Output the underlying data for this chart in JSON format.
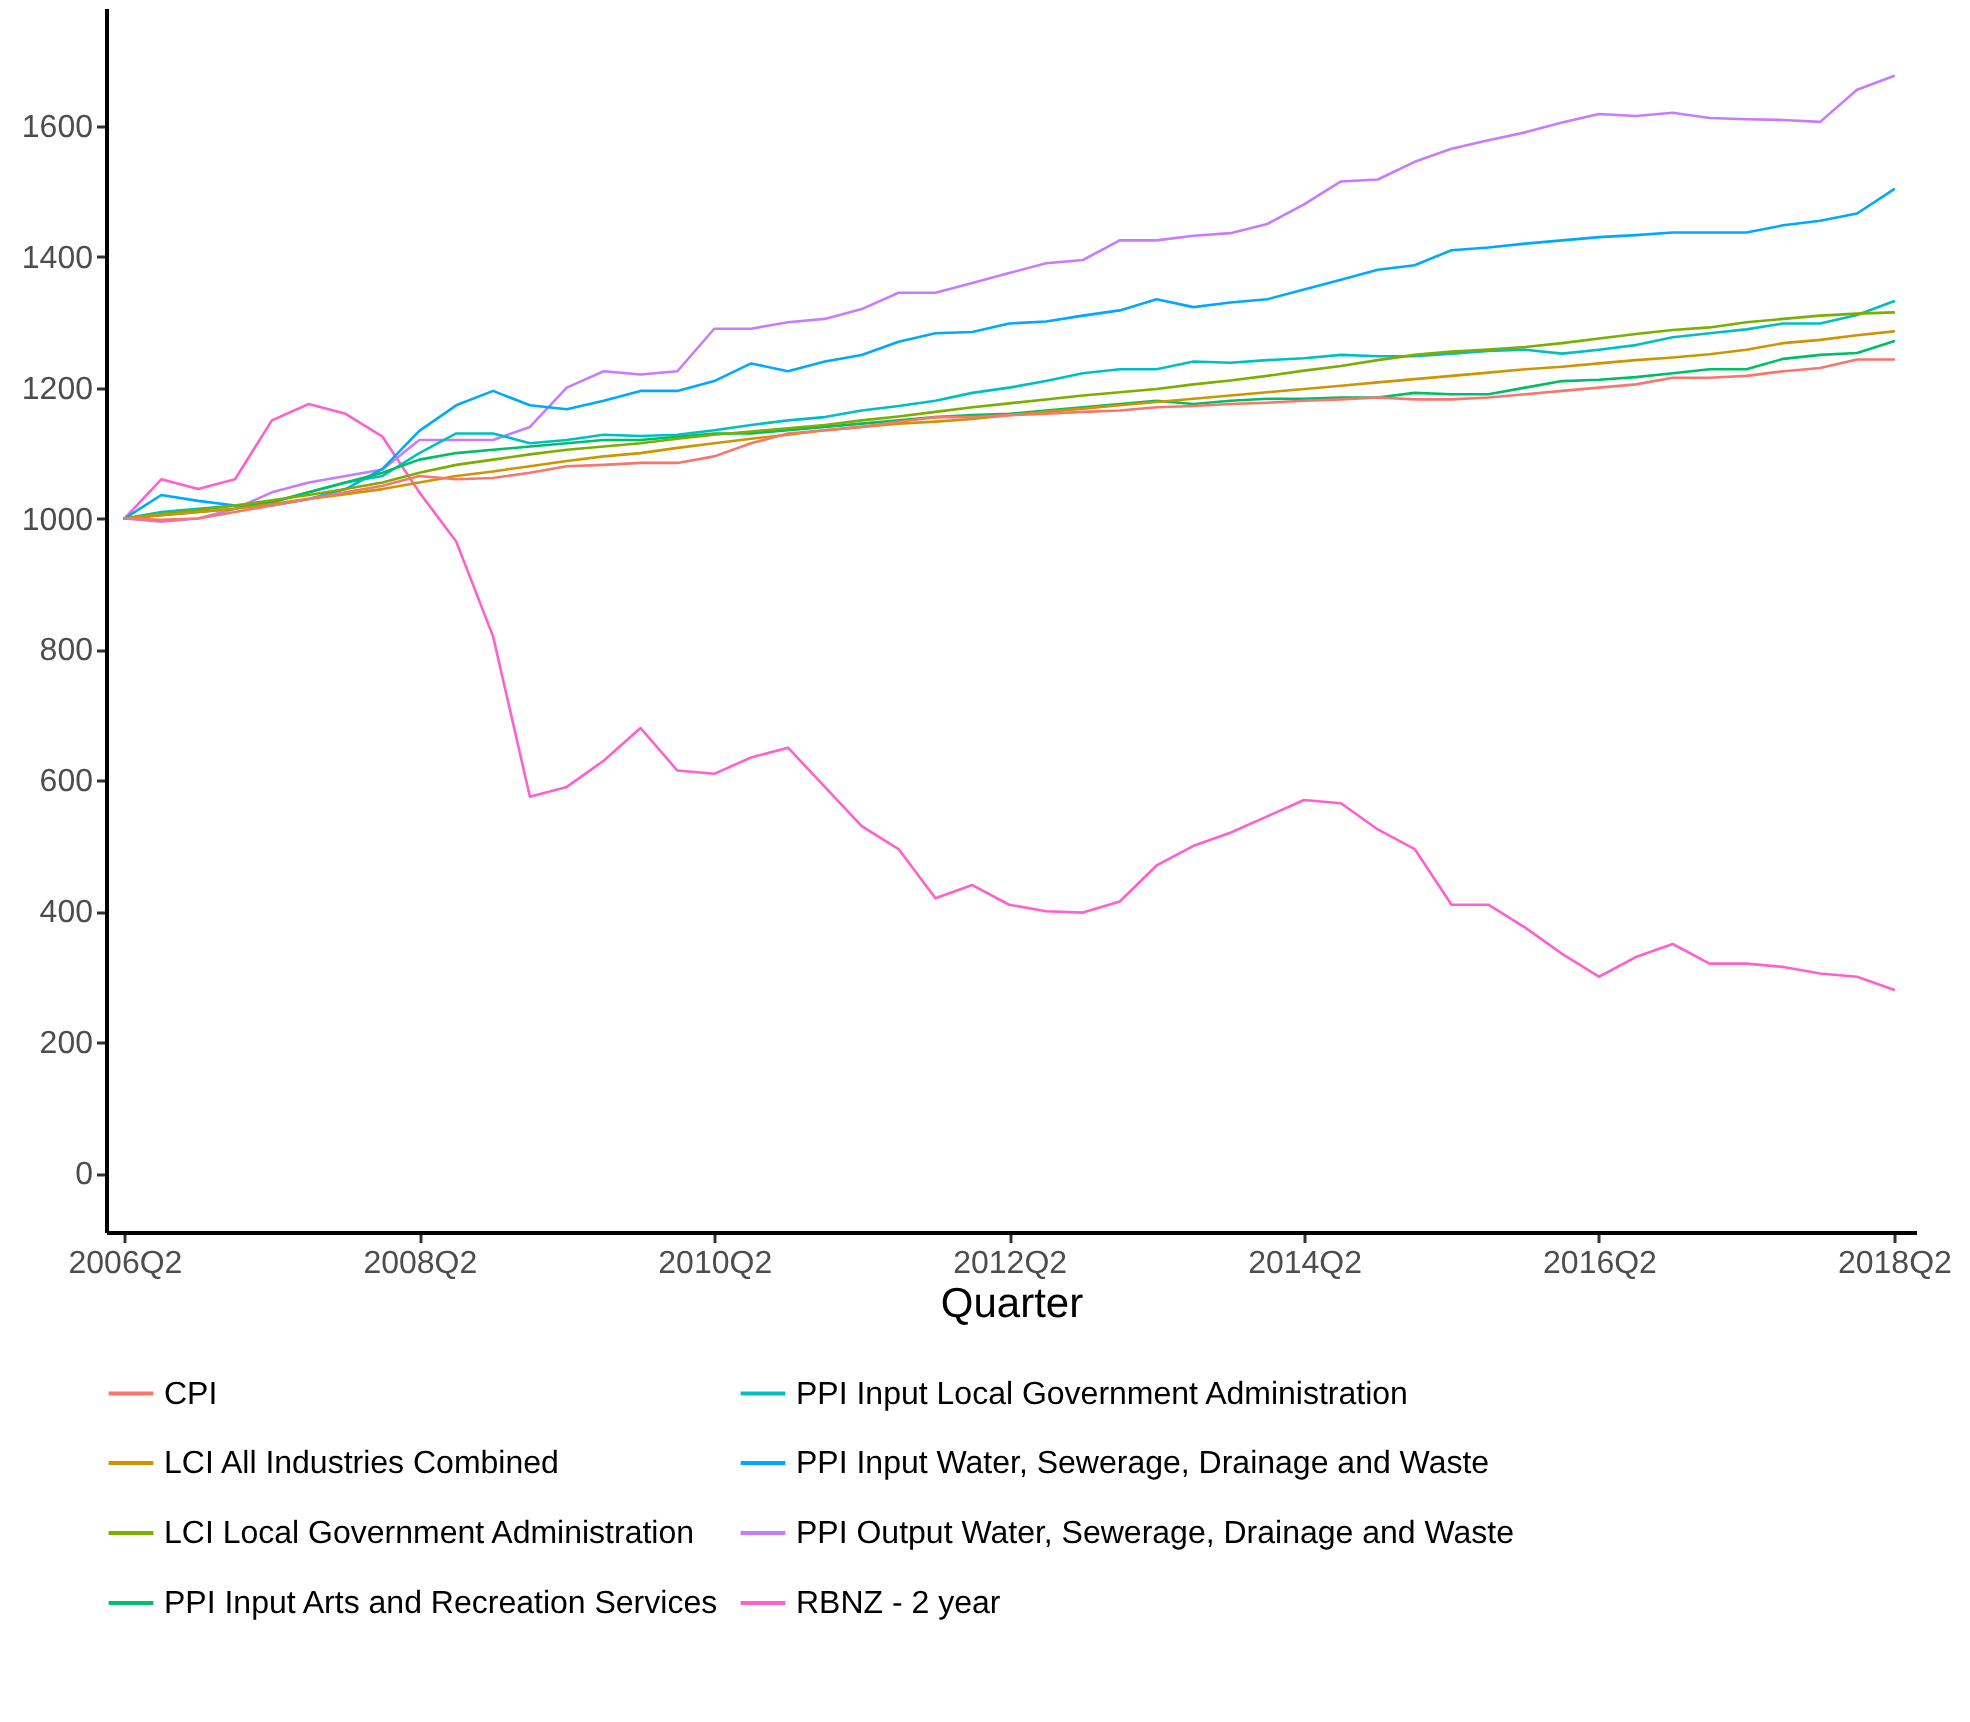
{
  "chart_data": {
    "type": "line",
    "xlabel": "Quarter",
    "categories": [
      "2006Q2",
      null,
      null,
      null,
      null,
      null,
      null,
      null,
      "2008Q2",
      null,
      null,
      null,
      null,
      null,
      null,
      null,
      "2010Q2",
      null,
      null,
      null,
      null,
      null,
      null,
      null,
      "2012Q2",
      null,
      null,
      null,
      null,
      null,
      null,
      null,
      "2014Q2",
      null,
      null,
      null,
      null,
      null,
      null,
      null,
      "2016Q2",
      null,
      null,
      null,
      null,
      null,
      null,
      null,
      "2018Q2"
    ],
    "ylim": [
      -90,
      1780
    ],
    "yticks": [
      0,
      200,
      400,
      600,
      800,
      1000,
      1200,
      1400,
      1600
    ],
    "grid": false,
    "legend": "bottom",
    "line_style": "solid",
    "series": [
      {
        "name": "CPI",
        "color": "#f8766d",
        "values": [
          1000,
          998,
          1000,
          1010,
          1020,
          1030,
          1040,
          1050,
          1065,
          1060,
          1062,
          1070,
          1080,
          1082,
          1085,
          1085,
          1095,
          1115,
          1130,
          1135,
          1140,
          1148,
          1155,
          1155,
          1158,
          1160,
          1163,
          1165,
          1170,
          1172,
          1175,
          1177,
          1180,
          1182,
          1185,
          1182,
          1182,
          1185,
          1190,
          1195,
          1200,
          1205,
          1215,
          1215,
          1218,
          1225,
          1230,
          1243,
          1243
        ]
      },
      {
        "name": "LCI All Industries Combined",
        "color": "#cd9600",
        "values": [
          1000,
          1005,
          1010,
          1015,
          1022,
          1030,
          1037,
          1045,
          1055,
          1065,
          1072,
          1080,
          1088,
          1095,
          1100,
          1108,
          1115,
          1122,
          1128,
          1135,
          1140,
          1145,
          1148,
          1152,
          1158,
          1163,
          1168,
          1173,
          1178,
          1183,
          1188,
          1193,
          1198,
          1203,
          1208,
          1213,
          1218,
          1223,
          1228,
          1232,
          1237,
          1242,
          1246,
          1251,
          1258,
          1268,
          1273,
          1280,
          1286
        ]
      },
      {
        "name": "LCI Local Government Administration",
        "color": "#7cae00",
        "values": [
          1000,
          1007,
          1013,
          1020,
          1028,
          1036,
          1045,
          1055,
          1070,
          1082,
          1090,
          1098,
          1105,
          1110,
          1115,
          1122,
          1128,
          1133,
          1138,
          1143,
          1150,
          1156,
          1163,
          1170,
          1176,
          1182,
          1188,
          1193,
          1198,
          1205,
          1211,
          1218,
          1226,
          1233,
          1242,
          1250,
          1255,
          1258,
          1262,
          1268,
          1275,
          1282,
          1288,
          1292,
          1300,
          1305,
          1310,
          1313,
          1315
        ]
      },
      {
        "name": "PPI Input Arts and Recreation Services",
        "color": "#00be67",
        "values": [
          1000,
          1005,
          1010,
          1015,
          1025,
          1040,
          1055,
          1070,
          1090,
          1100,
          1105,
          1110,
          1115,
          1120,
          1120,
          1125,
          1130,
          1130,
          1135,
          1140,
          1145,
          1150,
          1155,
          1158,
          1160,
          1165,
          1170,
          1175,
          1180,
          1175,
          1180,
          1183,
          1183,
          1185,
          1185,
          1192,
          1190,
          1190,
          1200,
          1210,
          1212,
          1216,
          1222,
          1228,
          1228,
          1244,
          1250,
          1253,
          1271
        ]
      },
      {
        "name": "PPI Input Local Government Administration",
        "color": "#00bfc4",
        "values": [
          1000,
          1010,
          1015,
          1020,
          1025,
          1040,
          1055,
          1065,
          1100,
          1130,
          1130,
          1115,
          1120,
          1128,
          1126,
          1128,
          1135,
          1143,
          1150,
          1155,
          1165,
          1172,
          1180,
          1192,
          1200,
          1210,
          1222,
          1228,
          1228,
          1240,
          1238,
          1242,
          1245,
          1250,
          1248,
          1248,
          1252,
          1256,
          1258,
          1252,
          1258,
          1265,
          1277,
          1283,
          1289,
          1298,
          1298,
          1311,
          1332
        ]
      },
      {
        "name": "PPI Input Water, Sewerage, Drainage and Waste",
        "color": "#00a9ff",
        "values": [
          1000,
          1036,
          1027,
          1020,
          1020,
          1030,
          1045,
          1076,
          1134,
          1173,
          1195,
          1173,
          1167,
          1180,
          1195,
          1195,
          1210,
          1237,
          1225,
          1240,
          1250,
          1270,
          1283,
          1285,
          1298,
          1301,
          1310,
          1318,
          1335,
          1323,
          1330,
          1335,
          1350,
          1365,
          1380,
          1387,
          1410,
          1414,
          1420,
          1425,
          1430,
          1433,
          1437,
          1437,
          1437,
          1448,
          1455,
          1466,
          1503
        ]
      },
      {
        "name": "PPI Output Water, Sewerage, Drainage and Waste",
        "color": "#c77cff",
        "values": [
          1000,
          995,
          1000,
          1015,
          1040,
          1055,
          1065,
          1075,
          1120,
          1120,
          1120,
          1140,
          1200,
          1225,
          1220,
          1225,
          1290,
          1290,
          1300,
          1305,
          1320,
          1345,
          1345,
          1360,
          1375,
          1390,
          1395,
          1425,
          1425,
          1432,
          1436,
          1450,
          1480,
          1515,
          1518,
          1545,
          1565,
          1578,
          1590,
          1605,
          1618,
          1615,
          1620,
          1612,
          1610,
          1609,
          1606,
          1655,
          1676
        ]
      },
      {
        "name": "RBNZ - 2 year",
        "color": "#ff61cc",
        "values": [
          1000,
          1060,
          1045,
          1060,
          1150,
          1175,
          1160,
          1125,
          1040,
          965,
          820,
          575,
          590,
          630,
          680,
          615,
          610,
          635,
          650,
          590,
          530,
          495,
          420,
          440,
          410,
          400,
          398,
          415,
          470,
          500,
          520,
          545,
          570,
          565,
          525,
          495,
          410,
          410,
          375,
          335,
          300,
          330,
          350,
          320,
          320,
          315,
          305,
          300,
          280
        ]
      }
    ]
  }
}
